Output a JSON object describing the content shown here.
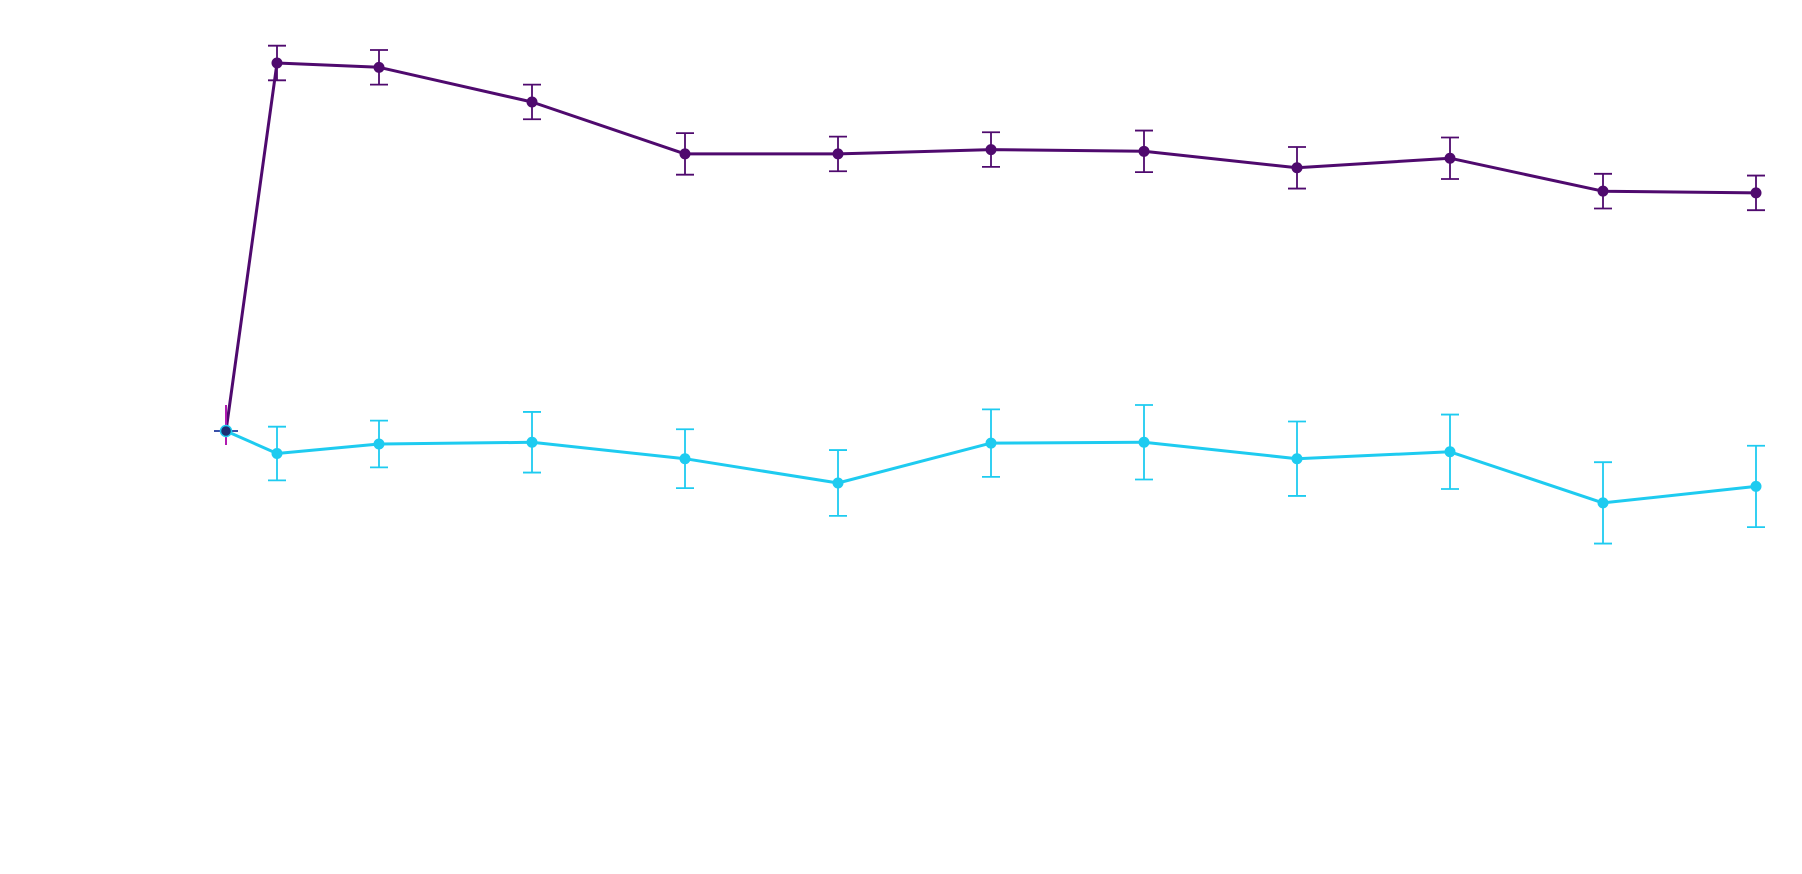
{
  "chart_data": {
    "type": "line",
    "title": "",
    "xlabel": "",
    "ylabel": "",
    "grid": false,
    "legend": "none",
    "x": [
      0,
      1,
      3,
      6,
      9,
      12,
      15,
      18,
      21,
      24,
      27,
      30
    ],
    "ylim": [
      -6,
      4.5
    ],
    "series": [
      {
        "color": "#4f0a6e",
        "values": [
          0,
          4.25,
          4.2,
          3.8,
          3.2,
          3.2,
          3.25,
          3.23,
          3.04,
          3.15,
          2.77,
          2.75
        ],
        "error": [
          0,
          0.2,
          0.2,
          0.2,
          0.24,
          0.2,
          0.2,
          0.24,
          0.24,
          0.24,
          0.2,
          0.2
        ]
      },
      {
        "color": "#1ecbf0",
        "values": [
          0,
          -0.26,
          -0.15,
          -0.13,
          -0.32,
          -0.6,
          -0.14,
          -0.13,
          -0.32,
          -0.24,
          -0.83,
          -0.64
        ],
        "error": [
          0,
          0.31,
          0.27,
          0.35,
          0.34,
          0.38,
          0.39,
          0.43,
          0.43,
          0.43,
          0.47,
          0.47
        ]
      }
    ]
  }
}
